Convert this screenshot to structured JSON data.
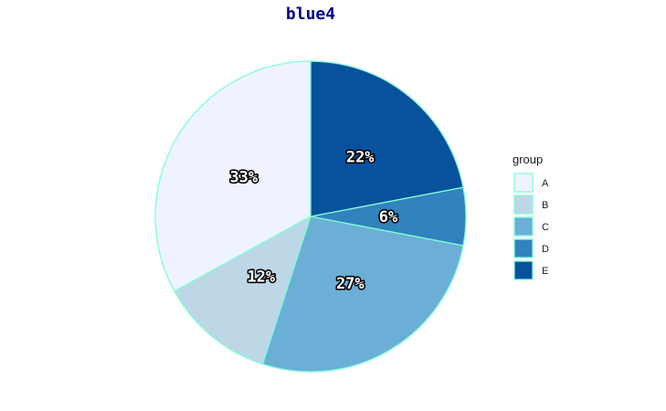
{
  "chart_data": {
    "type": "pie",
    "title": "blue4",
    "title_color": "#00008b",
    "slice_outline_color": "#7fffd4",
    "categories": [
      "A",
      "B",
      "C",
      "D",
      "E"
    ],
    "values": [
      33,
      12,
      27,
      6,
      22
    ],
    "labels": [
      "33%",
      "12%",
      "27%",
      "6%",
      "22%"
    ],
    "colors": [
      "#eff3ff",
      "#bdd7e7",
      "#6baed6",
      "#3182bd",
      "#08519c"
    ],
    "legend": {
      "title": "group",
      "position": "right",
      "items": [
        "A",
        "B",
        "C",
        "D",
        "E"
      ]
    }
  }
}
